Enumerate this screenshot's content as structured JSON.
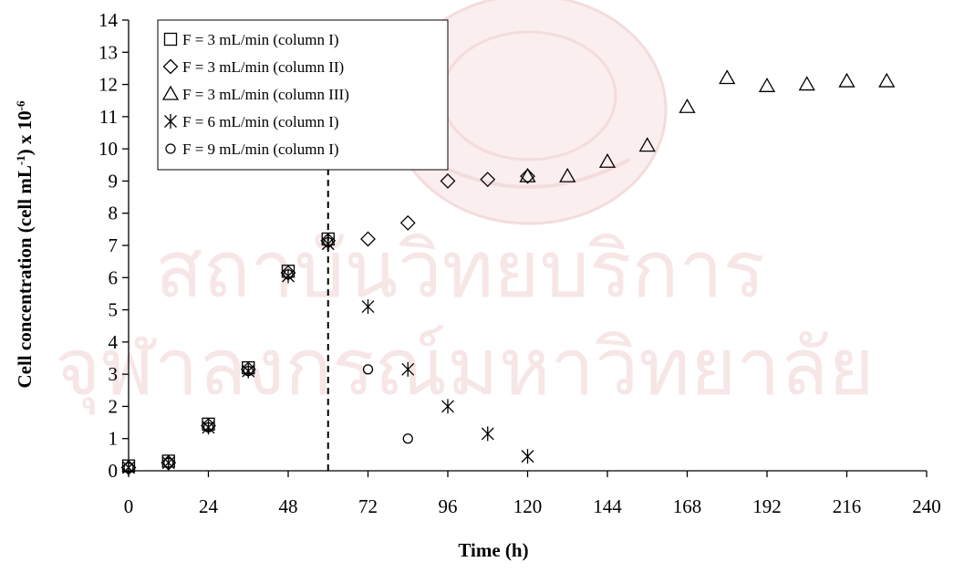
{
  "chart_data": {
    "type": "scatter",
    "title": "",
    "xlabel": "Time (h)",
    "ylabel": {
      "main": "Cell concentration (cell mL",
      "sup1": "-1",
      "mid": ") x 10",
      "sup2": "-6"
    },
    "xlim": [
      0,
      240
    ],
    "ylim": [
      0,
      14
    ],
    "xticks": [
      0,
      24,
      48,
      72,
      96,
      120,
      144,
      168,
      192,
      216,
      240
    ],
    "yticks": [
      0,
      1,
      2,
      3,
      4,
      5,
      6,
      7,
      8,
      9,
      10,
      11,
      12,
      13,
      14
    ],
    "grid": false,
    "legend_position": "top-left",
    "reference_line": {
      "x": 60,
      "style": "dashed",
      "from_y": 0,
      "to_y": 9.5
    },
    "series": [
      {
        "name": "F = 3 mL/min (column I)",
        "marker": "square",
        "x": [
          0,
          12,
          24,
          36,
          48,
          60
        ],
        "y": [
          0.15,
          0.3,
          1.45,
          3.2,
          6.2,
          7.2
        ]
      },
      {
        "name": "F = 3 mL/min (column II)",
        "marker": "diamond",
        "x": [
          0,
          12,
          24,
          36,
          48,
          60,
          72,
          84,
          96,
          108,
          120
        ],
        "y": [
          0.1,
          0.25,
          1.4,
          3.15,
          6.15,
          7.15,
          7.2,
          7.7,
          9.0,
          9.05,
          9.15
        ]
      },
      {
        "name": "F = 3 mL/min (column III)",
        "marker": "triangle",
        "x": [
          120,
          132,
          144,
          156,
          168,
          180,
          192,
          204,
          216,
          228
        ],
        "y": [
          9.15,
          9.15,
          9.6,
          10.1,
          11.3,
          12.2,
          11.95,
          12.0,
          12.1,
          12.1
        ]
      },
      {
        "name": "F = 6 mL/min (column I)",
        "marker": "asterisk",
        "x": [
          0,
          12,
          24,
          36,
          48,
          60,
          72,
          84,
          96,
          108,
          120
        ],
        "y": [
          0.1,
          0.25,
          1.35,
          3.1,
          6.05,
          7.05,
          5.1,
          3.15,
          2.0,
          1.15,
          0.45
        ]
      },
      {
        "name": "F = 9 mL/min (column I)",
        "marker": "circle",
        "x": [
          0,
          12,
          24,
          36,
          48,
          60,
          72,
          84
        ],
        "y": [
          0.1,
          0.25,
          1.35,
          3.1,
          6.1,
          7.1,
          3.15,
          1.0
        ]
      }
    ]
  },
  "watermark": {
    "line1": "สถาบันวิทยบริการ",
    "line2": "จุฬาลงกรณ์มหาวิทยาลัย"
  }
}
